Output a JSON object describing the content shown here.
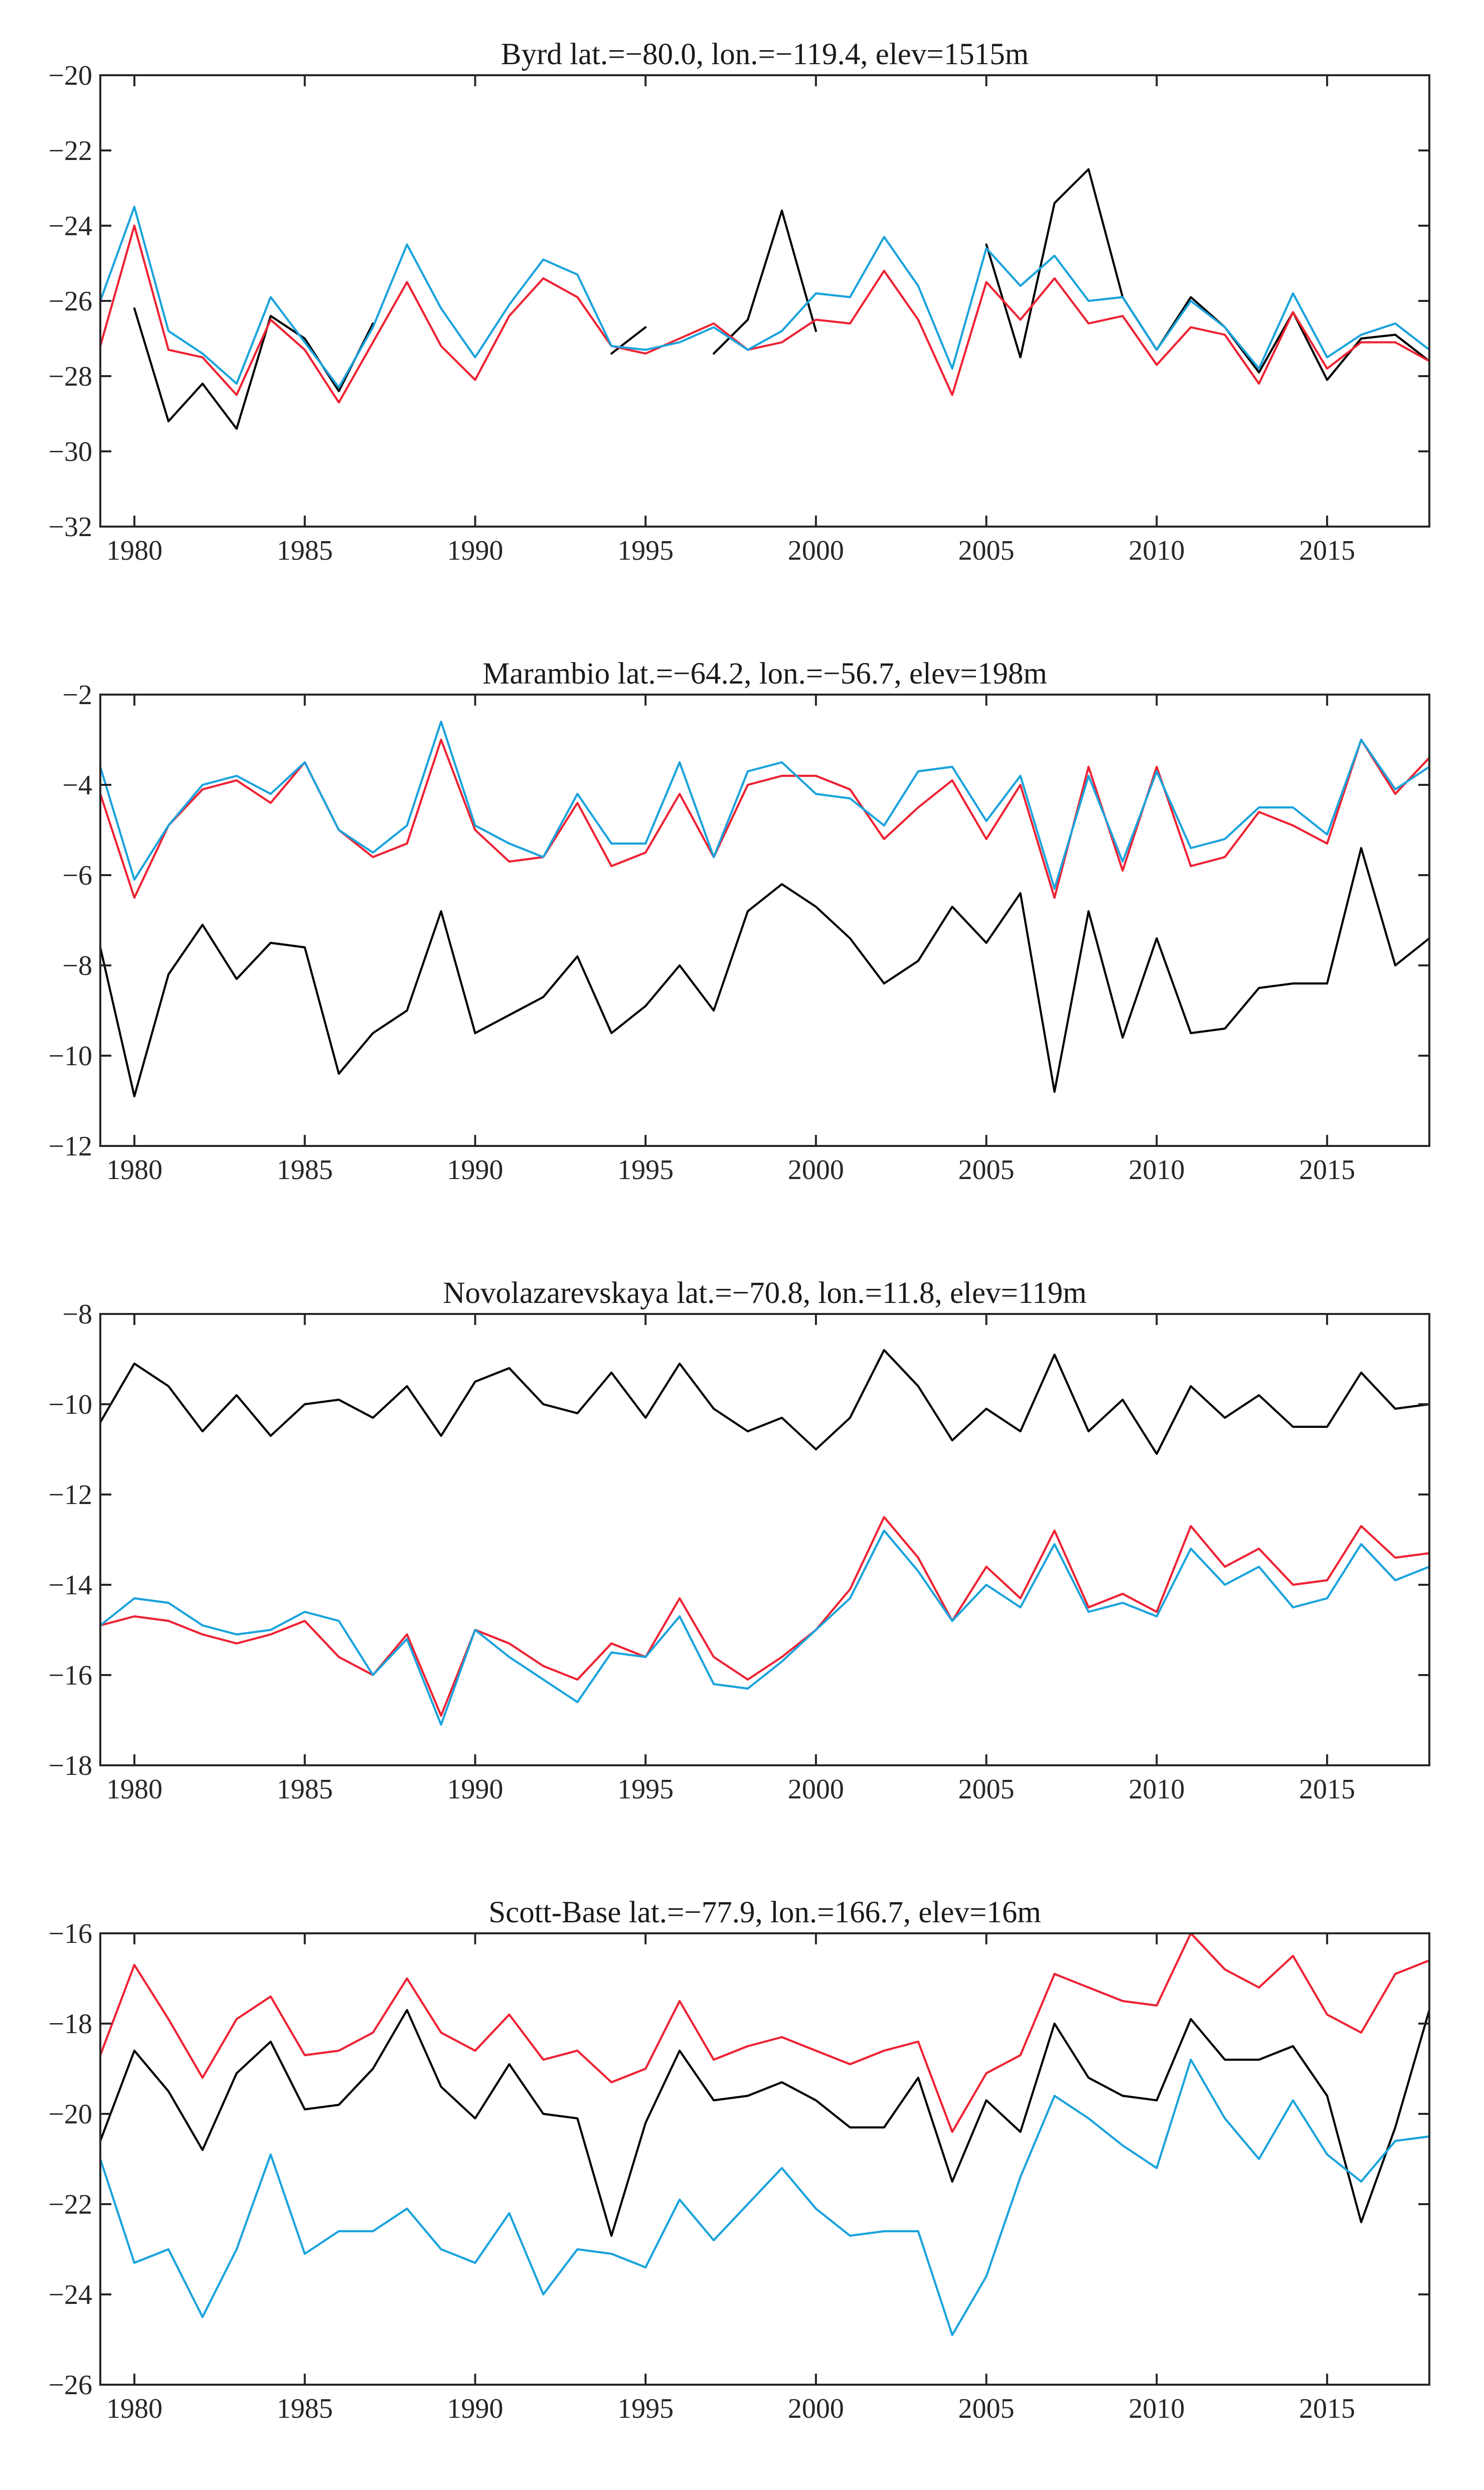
{
  "colors": {
    "black": "#000000",
    "red": "#ee2233",
    "cyan": "#1aa3dc"
  },
  "chart_data": [
    {
      "type": "line",
      "title": "Byrd lat.=−80.0, lon.=−119.4, elev=1515m",
      "xlim": [
        1979,
        2018
      ],
      "ylim": [
        -32,
        -20
      ],
      "xticks": [
        1980,
        1985,
        1990,
        1995,
        2000,
        2005,
        2010,
        2015
      ],
      "yticks": [
        -32,
        -30,
        -28,
        -26,
        -24,
        -22,
        -20
      ],
      "xtick_labels": [
        "1980",
        "1985",
        "1990",
        "1995",
        "2000",
        "2005",
        "2010",
        "2015"
      ],
      "ytick_labels": [
        "−32",
        "−30",
        "−28",
        "−26",
        "−24",
        "−22",
        "−20"
      ],
      "x": [
        1979,
        1980,
        1981,
        1982,
        1983,
        1984,
        1985,
        1986,
        1987,
        1988,
        1989,
        1990,
        1991,
        1992,
        1993,
        1994,
        1995,
        1996,
        1997,
        1998,
        1999,
        2000,
        2001,
        2002,
        2003,
        2004,
        2005,
        2006,
        2007,
        2008,
        2009,
        2010,
        2011,
        2012,
        2013,
        2014,
        2015,
        2016,
        2017,
        2018
      ],
      "series": [
        {
          "name": "black",
          "color": "#000000",
          "values": [
            null,
            -26.2,
            -29.2,
            -28.2,
            -29.4,
            -26.4,
            -27.0,
            -28.4,
            -26.6,
            null,
            null,
            null,
            null,
            null,
            null,
            -27.4,
            -26.7,
            null,
            -27.4,
            -26.5,
            -23.6,
            -26.8,
            null,
            null,
            null,
            null,
            -24.5,
            -27.5,
            -23.4,
            -22.5,
            -25.9,
            -27.3,
            -25.9,
            -26.7,
            -27.9,
            -26.3,
            -28.1,
            -27.0,
            -26.9,
            -27.6
          ]
        },
        {
          "name": "red",
          "color": "#ee2233",
          "values": [
            -27.2,
            -24.0,
            -27.3,
            -27.5,
            -28.5,
            -26.5,
            -27.3,
            -28.7,
            -27.1,
            -25.5,
            -27.2,
            -28.1,
            -26.4,
            -25.4,
            -25.9,
            -27.2,
            -27.4,
            -27.0,
            -26.6,
            -27.3,
            -27.1,
            -26.5,
            -26.6,
            -25.2,
            -26.5,
            -28.5,
            -25.5,
            -26.5,
            -25.4,
            -26.6,
            -26.4,
            -27.7,
            -26.7,
            -26.9,
            -28.2,
            -26.3,
            -27.8,
            -27.1,
            -27.1,
            -27.6
          ]
        },
        {
          "name": "cyan",
          "color": "#1aa3dc",
          "values": [
            -26.0,
            -23.5,
            -26.8,
            -27.4,
            -28.2,
            -25.9,
            -27.1,
            -28.3,
            -26.7,
            -24.5,
            -26.2,
            -27.5,
            -26.1,
            -24.9,
            -25.3,
            -27.2,
            -27.3,
            -27.1,
            -26.7,
            -27.3,
            -26.8,
            -25.8,
            -25.9,
            -24.3,
            -25.6,
            -27.8,
            -24.6,
            -25.6,
            -24.8,
            -26.0,
            -25.9,
            -27.3,
            -26.0,
            -26.7,
            -27.8,
            -25.8,
            -27.5,
            -26.9,
            -26.6,
            -27.3
          ]
        }
      ]
    },
    {
      "type": "line",
      "title": "Marambio lat.=−64.2, lon.=−56.7, elev=198m",
      "xlim": [
        1979,
        2018
      ],
      "ylim": [
        -12,
        -2
      ],
      "xticks": [
        1980,
        1985,
        1990,
        1995,
        2000,
        2005,
        2010,
        2015
      ],
      "yticks": [
        -12,
        -10,
        -8,
        -6,
        -4,
        -2
      ],
      "xtick_labels": [
        "1980",
        "1985",
        "1990",
        "1995",
        "2000",
        "2005",
        "2010",
        "2015"
      ],
      "ytick_labels": [
        "−12",
        "−10",
        "−8",
        "−6",
        "−4",
        "−2"
      ],
      "x": [
        1979,
        1980,
        1981,
        1982,
        1983,
        1984,
        1985,
        1986,
        1987,
        1988,
        1989,
        1990,
        1991,
        1992,
        1993,
        1994,
        1995,
        1996,
        1997,
        1998,
        1999,
        2000,
        2001,
        2002,
        2003,
        2004,
        2005,
        2006,
        2007,
        2008,
        2009,
        2010,
        2011,
        2012,
        2013,
        2014,
        2015,
        2016,
        2017,
        2018
      ],
      "series": [
        {
          "name": "black",
          "color": "#000000",
          "values": [
            -7.6,
            -10.9,
            -8.2,
            -7.1,
            -8.3,
            -7.5,
            -7.6,
            -10.4,
            -9.5,
            -9.0,
            -6.8,
            -9.5,
            -9.1,
            -8.7,
            -7.8,
            -9.5,
            -8.9,
            -8.0,
            -9.0,
            -6.8,
            -6.2,
            -6.7,
            -7.4,
            -8.4,
            -7.9,
            -6.7,
            -7.5,
            -6.4,
            -10.8,
            -6.8,
            -9.6,
            -7.4,
            -9.5,
            -9.4,
            -8.5,
            -8.4,
            -8.4,
            -5.4,
            -8.0,
            -7.4
          ]
        },
        {
          "name": "red",
          "color": "#ee2233",
          "values": [
            -4.2,
            -6.5,
            -4.9,
            -4.1,
            -3.9,
            -4.4,
            -3.5,
            -5.0,
            -5.6,
            -5.3,
            -3.0,
            -5.0,
            -5.7,
            -5.6,
            -4.4,
            -5.8,
            -5.5,
            -4.2,
            -5.6,
            -4.0,
            -3.8,
            -3.8,
            -4.1,
            -5.2,
            -4.5,
            -3.9,
            -5.2,
            -4.0,
            -6.5,
            -3.6,
            -5.9,
            -3.6,
            -5.8,
            -5.6,
            -4.6,
            -4.9,
            -5.3,
            -3.0,
            -4.2,
            -3.4
          ]
        },
        {
          "name": "cyan",
          "color": "#1aa3dc",
          "values": [
            -3.6,
            -6.1,
            -4.9,
            -4.0,
            -3.8,
            -4.2,
            -3.5,
            -5.0,
            -5.5,
            -4.9,
            -2.6,
            -4.9,
            -5.3,
            -5.6,
            -4.2,
            -5.3,
            -5.3,
            -3.5,
            -5.6,
            -3.7,
            -3.5,
            -4.2,
            -4.3,
            -4.9,
            -3.7,
            -3.6,
            -4.8,
            -3.8,
            -6.3,
            -3.8,
            -5.7,
            -3.7,
            -5.4,
            -5.2,
            -4.5,
            -4.5,
            -5.1,
            -3.0,
            -4.1,
            -3.6
          ]
        }
      ]
    },
    {
      "type": "line",
      "title": "Novolazarevskaya lat.=−70.8, lon.=11.8, elev=119m",
      "xlim": [
        1979,
        2018
      ],
      "ylim": [
        -18,
        -8
      ],
      "xticks": [
        1980,
        1985,
        1990,
        1995,
        2000,
        2005,
        2010,
        2015
      ],
      "yticks": [
        -18,
        -16,
        -14,
        -12,
        -10,
        -8
      ],
      "xtick_labels": [
        "1980",
        "1985",
        "1990",
        "1995",
        "2000",
        "2005",
        "2010",
        "2015"
      ],
      "ytick_labels": [
        "−18",
        "−16",
        "−14",
        "−12",
        "−10",
        "−8"
      ],
      "x": [
        1979,
        1980,
        1981,
        1982,
        1983,
        1984,
        1985,
        1986,
        1987,
        1988,
        1989,
        1990,
        1991,
        1992,
        1993,
        1994,
        1995,
        1996,
        1997,
        1998,
        1999,
        2000,
        2001,
        2002,
        2003,
        2004,
        2005,
        2006,
        2007,
        2008,
        2009,
        2010,
        2011,
        2012,
        2013,
        2014,
        2015,
        2016,
        2017,
        2018
      ],
      "series": [
        {
          "name": "black",
          "color": "#000000",
          "values": [
            -10.4,
            -9.1,
            -9.6,
            -10.6,
            -9.8,
            -10.7,
            -10.0,
            -9.9,
            -10.3,
            -9.6,
            -10.7,
            -9.5,
            -9.2,
            -10.0,
            -10.2,
            -9.3,
            -10.3,
            -9.1,
            -10.1,
            -10.6,
            -10.3,
            -11.0,
            -10.3,
            -8.8,
            -9.6,
            -10.8,
            -10.1,
            -10.6,
            -8.9,
            -10.6,
            -9.9,
            -11.1,
            -9.6,
            -10.3,
            -9.8,
            -10.5,
            -10.5,
            -9.3,
            -10.1,
            -10.0
          ]
        },
        {
          "name": "red",
          "color": "#ee2233",
          "values": [
            -14.9,
            -14.7,
            -14.8,
            -15.1,
            -15.3,
            -15.1,
            -14.8,
            -15.6,
            -16.0,
            -15.1,
            -16.9,
            -15.0,
            -15.3,
            -15.8,
            -16.1,
            -15.3,
            -15.6,
            -14.3,
            -15.6,
            -16.1,
            -15.6,
            -15.0,
            -14.1,
            -12.5,
            -13.4,
            -14.8,
            -13.6,
            -14.3,
            -12.8,
            -14.5,
            -14.2,
            -14.6,
            -12.7,
            -13.6,
            -13.2,
            -14.0,
            -13.9,
            -12.7,
            -13.4,
            -13.3
          ]
        },
        {
          "name": "cyan",
          "color": "#1aa3dc",
          "values": [
            -14.9,
            -14.3,
            -14.4,
            -14.9,
            -15.1,
            -15.0,
            -14.6,
            -14.8,
            -16.0,
            -15.2,
            -17.1,
            -15.0,
            -15.6,
            -16.1,
            -16.6,
            -15.5,
            -15.6,
            -14.7,
            -16.2,
            -16.3,
            -15.7,
            -15.0,
            -14.3,
            -12.8,
            -13.7,
            -14.8,
            -14.0,
            -14.5,
            -13.1,
            -14.6,
            -14.4,
            -14.7,
            -13.2,
            -14.0,
            -13.6,
            -14.5,
            -14.3,
            -13.1,
            -13.9,
            -13.6
          ]
        }
      ]
    },
    {
      "type": "line",
      "title": "Scott-Base lat.=−77.9, lon.=166.7, elev=16m",
      "xlim": [
        1979,
        2018
      ],
      "ylim": [
        -26,
        -16
      ],
      "xticks": [
        1980,
        1985,
        1990,
        1995,
        2000,
        2005,
        2010,
        2015
      ],
      "yticks": [
        -26,
        -24,
        -22,
        -20,
        -18,
        -16
      ],
      "xtick_labels": [
        "1980",
        "1985",
        "1990",
        "1995",
        "2000",
        "2005",
        "2010",
        "2015"
      ],
      "ytick_labels": [
        "−26",
        "−24",
        "−22",
        "−20",
        "−18",
        "−16"
      ],
      "x": [
        1979,
        1980,
        1981,
        1982,
        1983,
        1984,
        1985,
        1986,
        1987,
        1988,
        1989,
        1990,
        1991,
        1992,
        1993,
        1994,
        1995,
        1996,
        1997,
        1998,
        1999,
        2000,
        2001,
        2002,
        2003,
        2004,
        2005,
        2006,
        2007,
        2008,
        2009,
        2010,
        2011,
        2012,
        2013,
        2014,
        2015,
        2016,
        2017,
        2018
      ],
      "series": [
        {
          "name": "black",
          "color": "#000000",
          "values": [
            -20.6,
            -18.6,
            -19.5,
            -20.8,
            -19.1,
            -18.4,
            -19.9,
            -19.8,
            -19.0,
            -17.7,
            -19.4,
            -20.1,
            -18.9,
            -20.0,
            -20.1,
            -22.7,
            -20.2,
            -18.6,
            -19.7,
            -19.6,
            -19.3,
            -19.7,
            -20.3,
            -20.3,
            -19.2,
            -21.5,
            -19.7,
            -20.4,
            -18.0,
            -19.2,
            -19.6,
            -19.7,
            -17.9,
            -18.8,
            -18.8,
            -18.5,
            -19.6,
            -22.4,
            -20.3,
            -17.7
          ]
        },
        {
          "name": "red",
          "color": "#ee2233",
          "values": [
            -18.7,
            -16.7,
            -17.9,
            -19.2,
            -17.9,
            -17.4,
            -18.7,
            -18.6,
            -18.2,
            -17.0,
            -18.2,
            -18.6,
            -17.8,
            -18.8,
            -18.6,
            -19.3,
            -19.0,
            -17.5,
            -18.8,
            -18.5,
            -18.3,
            -18.6,
            -18.9,
            -18.6,
            -18.4,
            -20.4,
            -19.1,
            -18.7,
            -16.9,
            -17.2,
            -17.5,
            -17.6,
            -16.0,
            -16.8,
            -17.2,
            -16.5,
            -17.8,
            -18.2,
            -16.9,
            -16.6
          ]
        },
        {
          "name": "cyan",
          "color": "#1aa3dc",
          "values": [
            -21.0,
            -23.3,
            -23.0,
            -24.5,
            -23.0,
            -20.9,
            -23.1,
            -22.6,
            -22.6,
            -22.1,
            -23.0,
            -23.3,
            -22.2,
            -24.0,
            -23.0,
            -23.1,
            -23.4,
            -21.9,
            -22.8,
            -22.0,
            -21.2,
            -22.1,
            -22.7,
            -22.6,
            -22.6,
            -24.9,
            -23.6,
            -21.4,
            -19.6,
            -20.1,
            -20.7,
            -21.2,
            -18.8,
            -20.1,
            -21.0,
            -19.7,
            -20.9,
            -21.5,
            -20.6,
            -20.5
          ]
        }
      ]
    }
  ]
}
